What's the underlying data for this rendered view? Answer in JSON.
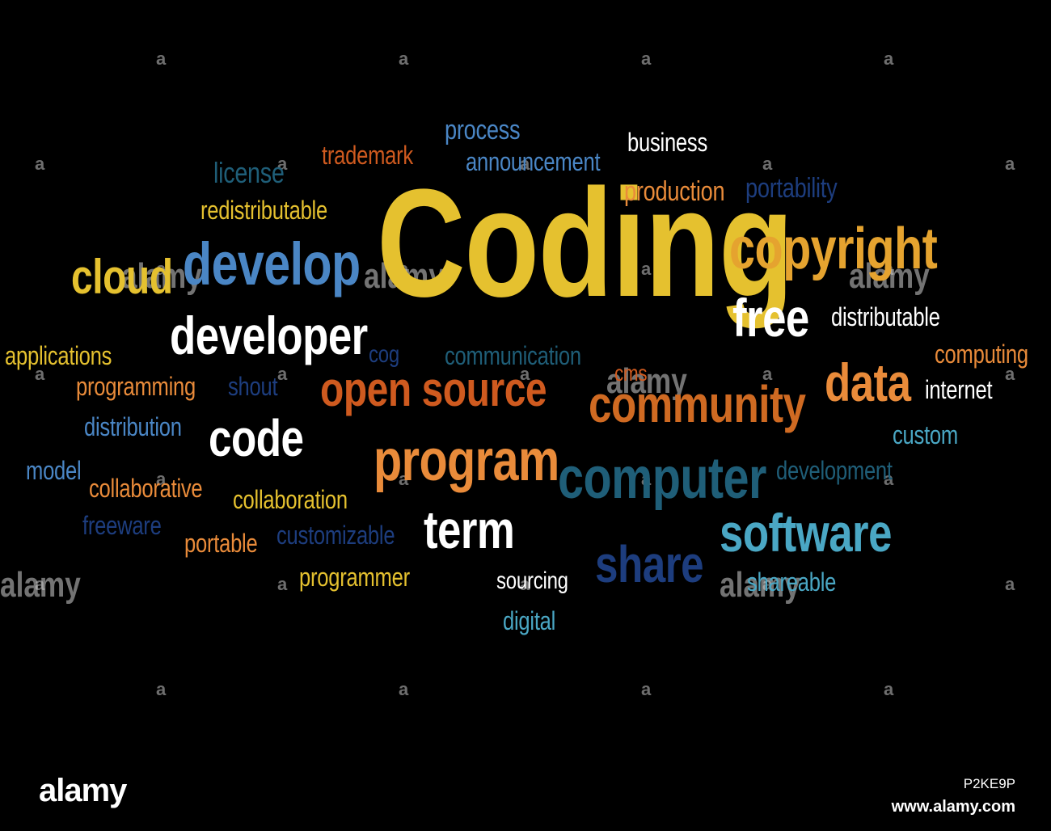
{
  "colors": {
    "background": "#000000",
    "yellow": "#e5c12f",
    "orange": "#e98b3a",
    "rust": "#cf5a1f",
    "white": "#ffffff",
    "steelblue": "#4a86c5",
    "teal": "#4aa7c4",
    "navy": "#1d3d7e",
    "darkteal": "#1f5e78",
    "gray": "#9a9a9a"
  },
  "words": [
    {
      "text": "Coding",
      "color": "#e5c12f",
      "size": 190,
      "bold": true
    },
    {
      "text": "copyright",
      "color": "#e5a32f",
      "size": 72,
      "bold": true
    },
    {
      "text": "develop",
      "color": "#4a86c5",
      "size": 74,
      "bold": true
    },
    {
      "text": "cloud",
      "color": "#e5c12f",
      "size": 60,
      "bold": true
    },
    {
      "text": "developer",
      "color": "#ffffff",
      "size": 66,
      "bold": true
    },
    {
      "text": "free",
      "color": "#ffffff",
      "size": 66,
      "bold": true
    },
    {
      "text": "open source",
      "color": "#cf5a1f",
      "size": 60,
      "bold": true
    },
    {
      "text": "community",
      "color": "#cf6a22",
      "size": 64,
      "bold": true
    },
    {
      "text": "data",
      "color": "#e98b3a",
      "size": 66,
      "bold": true
    },
    {
      "text": "code",
      "color": "#ffffff",
      "size": 64,
      "bold": true
    },
    {
      "text": "program",
      "color": "#e98b3a",
      "size": 72,
      "bold": true
    },
    {
      "text": "computer",
      "color": "#1f5e78",
      "size": 72,
      "bold": true
    },
    {
      "text": "software",
      "color": "#4aa7c4",
      "size": 66,
      "bold": true
    },
    {
      "text": "term",
      "color": "#ffffff",
      "size": 66,
      "bold": true
    },
    {
      "text": "share",
      "color": "#1d3d7e",
      "size": 64,
      "bold": true
    },
    {
      "text": "process",
      "color": "#4a86c5",
      "size": 34
    },
    {
      "text": "business",
      "color": "#ffffff",
      "size": 32
    },
    {
      "text": "trademark",
      "color": "#cf5a1f",
      "size": 32
    },
    {
      "text": "announcement",
      "color": "#4a86c5",
      "size": 32
    },
    {
      "text": "license",
      "color": "#1f5e78",
      "size": 36
    },
    {
      "text": "production",
      "color": "#e98b3a",
      "size": 34
    },
    {
      "text": "portability",
      "color": "#1d3d7e",
      "size": 34
    },
    {
      "text": "redistributable",
      "color": "#e5c12f",
      "size": 32
    },
    {
      "text": "distributable",
      "color": "#ffffff",
      "size": 32
    },
    {
      "text": "applications",
      "color": "#e5c12f",
      "size": 32
    },
    {
      "text": "cog",
      "color": "#1d3d7e",
      "size": 30
    },
    {
      "text": "communication",
      "color": "#1f5e78",
      "size": 32
    },
    {
      "text": "computing",
      "color": "#e98b3a",
      "size": 32
    },
    {
      "text": "cms",
      "color": "#cf5a1f",
      "size": 28
    },
    {
      "text": "programming",
      "color": "#e98b3a",
      "size": 32
    },
    {
      "text": "shout",
      "color": "#1d3d7e",
      "size": 32
    },
    {
      "text": "internet",
      "color": "#ffffff",
      "size": 32
    },
    {
      "text": "distribution",
      "color": "#4a86c5",
      "size": 32
    },
    {
      "text": "custom",
      "color": "#4aa7c4",
      "size": 32
    },
    {
      "text": "model",
      "color": "#4a86c5",
      "size": 32
    },
    {
      "text": "collaborative",
      "color": "#e98b3a",
      "size": 32
    },
    {
      "text": "collaboration",
      "color": "#e5c12f",
      "size": 32
    },
    {
      "text": "development",
      "color": "#1f5e78",
      "size": 32
    },
    {
      "text": "freeware",
      "color": "#1d3d7e",
      "size": 32
    },
    {
      "text": "portable",
      "color": "#e98b3a",
      "size": 32
    },
    {
      "text": "customizable",
      "color": "#1d3d7e",
      "size": 32
    },
    {
      "text": "programmer",
      "color": "#e5c12f",
      "size": 32
    },
    {
      "text": "sourcing",
      "color": "#ffffff",
      "size": 30
    },
    {
      "text": "shareable",
      "color": "#4aa7c4",
      "size": 32
    },
    {
      "text": "digital",
      "color": "#4aa7c4",
      "size": 32
    }
  ],
  "watermarks": {
    "tile_letter": "a",
    "logo_text": "alamy"
  },
  "footer": {
    "logo": "alamy",
    "image_id": "P2KE9P",
    "url": "www.alamy.com"
  }
}
